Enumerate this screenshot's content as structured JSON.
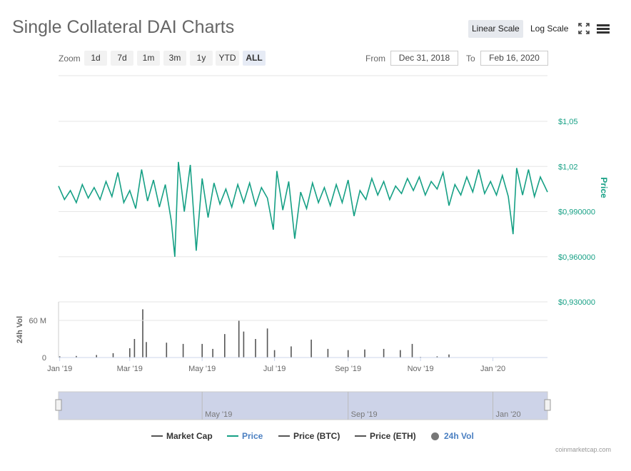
{
  "title": "Single Collateral DAI Charts",
  "scale_buttons": {
    "linear": "Linear Scale",
    "log": "Log Scale"
  },
  "zoom": {
    "label": "Zoom",
    "buttons": [
      "1d",
      "7d",
      "1m",
      "3m",
      "1y",
      "YTD",
      "ALL"
    ],
    "active": "ALL"
  },
  "range": {
    "from_label": "From",
    "from_value": "Dec 31, 2018",
    "to_label": "To",
    "to_value": "Feb 16, 2020"
  },
  "legend": [
    {
      "label": "Market Cap",
      "color": "#555555",
      "active": false
    },
    {
      "label": "Price",
      "color": "#16a085",
      "active": true
    },
    {
      "label": "Price (BTC)",
      "color": "#555555",
      "active": false
    },
    {
      "label": "Price (ETH)",
      "color": "#555555",
      "active": false
    },
    {
      "label": "24h Vol",
      "color": "#777777",
      "active": true
    }
  ],
  "credit": "coinmarketcap.com",
  "colors": {
    "price_line": "#16a085",
    "price_axis": "#16a085",
    "volume_bar": "#555555",
    "navigator_fill": "#cdd3e8",
    "accent_blue": "#4a7fc1"
  },
  "chart_data": {
    "type": "line",
    "x_range": [
      "2018-12-31",
      "2020-02-16"
    ],
    "x_tick_labels": [
      "Jan '19",
      "Mar '19",
      "May '19",
      "Jul '19",
      "Sep '19",
      "Nov '19",
      "Jan '20"
    ],
    "navigator_tick_labels": [
      "May '19",
      "Sep '19",
      "Jan '20"
    ],
    "price": {
      "axis_title": "Price",
      "tick_labels": [
        "$1,05",
        "$1,02",
        "$0,990000",
        "$0,960000",
        "$0,930000"
      ],
      "tick_values": [
        1.05,
        1.02,
        0.99,
        0.96,
        0.93
      ],
      "ylim": [
        0.93,
        1.05
      ],
      "points": [
        [
          "2018-12-31",
          1.007
        ],
        [
          "2019-01-05",
          0.998
        ],
        [
          "2019-01-10",
          1.004
        ],
        [
          "2019-01-15",
          0.996
        ],
        [
          "2019-01-20",
          1.008
        ],
        [
          "2019-01-25",
          0.999
        ],
        [
          "2019-01-30",
          1.006
        ],
        [
          "2019-02-04",
          0.998
        ],
        [
          "2019-02-09",
          1.01
        ],
        [
          "2019-02-14",
          1.0
        ],
        [
          "2019-02-19",
          1.016
        ],
        [
          "2019-02-24",
          0.996
        ],
        [
          "2019-03-01",
          1.004
        ],
        [
          "2019-03-06",
          0.992
        ],
        [
          "2019-03-11",
          1.018
        ],
        [
          "2019-03-16",
          0.997
        ],
        [
          "2019-03-21",
          1.011
        ],
        [
          "2019-03-26",
          0.993
        ],
        [
          "2019-03-31",
          1.008
        ],
        [
          "2019-04-05",
          0.984
        ],
        [
          "2019-04-08",
          0.96
        ],
        [
          "2019-04-11",
          1.023
        ],
        [
          "2019-04-16",
          0.99
        ],
        [
          "2019-04-21",
          1.021
        ],
        [
          "2019-04-26",
          0.964
        ],
        [
          "2019-05-01",
          1.012
        ],
        [
          "2019-05-06",
          0.986
        ],
        [
          "2019-05-11",
          1.009
        ],
        [
          "2019-05-16",
          0.995
        ],
        [
          "2019-05-21",
          1.005
        ],
        [
          "2019-05-26",
          0.993
        ],
        [
          "2019-05-31",
          1.008
        ],
        [
          "2019-06-05",
          0.996
        ],
        [
          "2019-06-10",
          1.009
        ],
        [
          "2019-06-15",
          0.994
        ],
        [
          "2019-06-20",
          1.006
        ],
        [
          "2019-06-25",
          0.999
        ],
        [
          "2019-06-30",
          0.978
        ],
        [
          "2019-07-03",
          1.017
        ],
        [
          "2019-07-08",
          0.991
        ],
        [
          "2019-07-13",
          1.01
        ],
        [
          "2019-07-18",
          0.972
        ],
        [
          "2019-07-23",
          1.003
        ],
        [
          "2019-07-28",
          0.992
        ],
        [
          "2019-08-02",
          1.009
        ],
        [
          "2019-08-07",
          0.996
        ],
        [
          "2019-08-12",
          1.006
        ],
        [
          "2019-08-17",
          0.994
        ],
        [
          "2019-08-22",
          1.008
        ],
        [
          "2019-08-27",
          0.996
        ],
        [
          "2019-09-01",
          1.011
        ],
        [
          "2019-09-06",
          0.987
        ],
        [
          "2019-09-11",
          1.004
        ],
        [
          "2019-09-16",
          0.998
        ],
        [
          "2019-09-21",
          1.012
        ],
        [
          "2019-09-26",
          1.001
        ],
        [
          "2019-10-01",
          1.01
        ],
        [
          "2019-10-06",
          0.998
        ],
        [
          "2019-10-11",
          1.007
        ],
        [
          "2019-10-16",
          1.002
        ],
        [
          "2019-10-21",
          1.012
        ],
        [
          "2019-10-26",
          1.004
        ],
        [
          "2019-10-31",
          1.013
        ],
        [
          "2019-11-05",
          1.001
        ],
        [
          "2019-11-10",
          1.01
        ],
        [
          "2019-11-15",
          1.005
        ],
        [
          "2019-11-20",
          1.016
        ],
        [
          "2019-11-25",
          0.994
        ],
        [
          "2019-11-30",
          1.008
        ],
        [
          "2019-12-05",
          1.001
        ],
        [
          "2019-12-10",
          1.013
        ],
        [
          "2019-12-15",
          1.003
        ],
        [
          "2019-12-20",
          1.018
        ],
        [
          "2019-12-25",
          1.002
        ],
        [
          "2019-12-30",
          1.01
        ],
        [
          "2020-01-04",
          1.001
        ],
        [
          "2020-01-09",
          1.014
        ],
        [
          "2020-01-14",
          1.0
        ],
        [
          "2020-01-18",
          0.975
        ],
        [
          "2020-01-21",
          1.019
        ],
        [
          "2020-01-26",
          1.001
        ],
        [
          "2020-01-31",
          1.018
        ],
        [
          "2020-02-05",
          1.0
        ],
        [
          "2020-02-10",
          1.013
        ],
        [
          "2020-02-16",
          1.003
        ]
      ]
    },
    "volume": {
      "axis_title": "24h Vol",
      "tick_labels": [
        "60 M",
        "0"
      ],
      "tick_values": [
        60000000,
        0
      ],
      "ylim": [
        0,
        90000000
      ],
      "points": [
        [
          "2019-01-01",
          2000000
        ],
        [
          "2019-01-15",
          2500000
        ],
        [
          "2019-02-01",
          4000000
        ],
        [
          "2019-02-15",
          7000000
        ],
        [
          "2019-03-01",
          15000000
        ],
        [
          "2019-03-05",
          30000000
        ],
        [
          "2019-03-12",
          78000000
        ],
        [
          "2019-03-15",
          25000000
        ],
        [
          "2019-04-01",
          24000000
        ],
        [
          "2019-04-15",
          22000000
        ],
        [
          "2019-05-01",
          22000000
        ],
        [
          "2019-05-10",
          14000000
        ],
        [
          "2019-05-20",
          38000000
        ],
        [
          "2019-06-01",
          60000000
        ],
        [
          "2019-06-05",
          42000000
        ],
        [
          "2019-06-15",
          30000000
        ],
        [
          "2019-06-25",
          47000000
        ],
        [
          "2019-07-01",
          12000000
        ],
        [
          "2019-07-15",
          18000000
        ],
        [
          "2019-08-01",
          29000000
        ],
        [
          "2019-08-15",
          14000000
        ],
        [
          "2019-09-01",
          12000000
        ],
        [
          "2019-09-15",
          13000000
        ],
        [
          "2019-10-01",
          14000000
        ],
        [
          "2019-10-15",
          12000000
        ],
        [
          "2019-10-25",
          22000000
        ],
        [
          "2019-11-01",
          1000000
        ],
        [
          "2019-11-15",
          2000000
        ],
        [
          "2019-11-25",
          5000000
        ],
        [
          "2019-12-01",
          0
        ],
        [
          "2020-02-16",
          0
        ]
      ]
    }
  }
}
